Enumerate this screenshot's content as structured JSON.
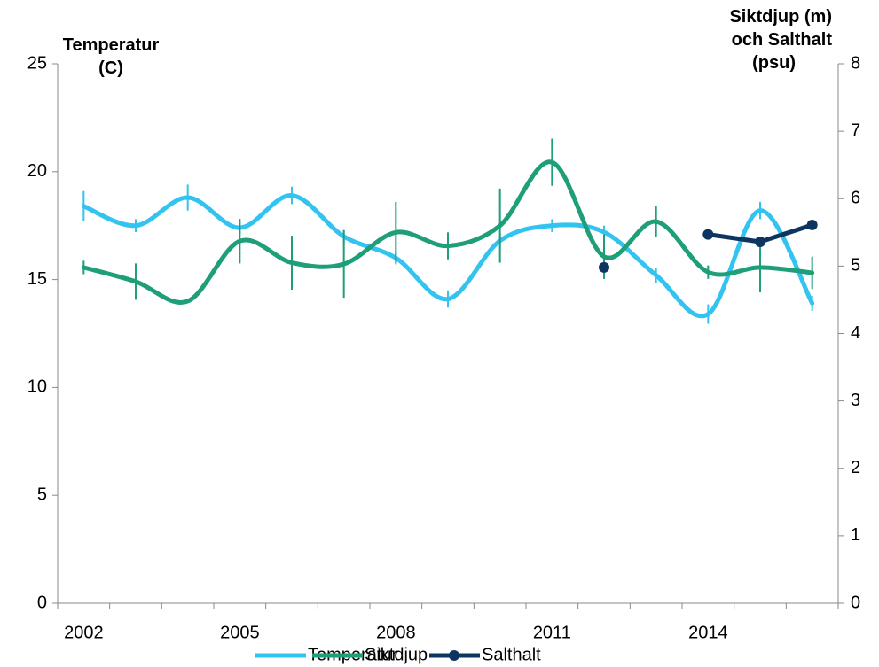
{
  "chart_data": {
    "type": "line",
    "y_label": [
      "Temperatur",
      "(C)"
    ],
    "y2_label": [
      "Siktdjup (m)",
      "och Salthalt",
      "(psu)"
    ],
    "categories": [
      "2002",
      null,
      null,
      "2005",
      null,
      null,
      "2008",
      null,
      null,
      "2011",
      null,
      null,
      "2014",
      null,
      null
    ],
    "ylim": [
      0,
      25
    ],
    "yticks": [
      0,
      5,
      10,
      15,
      20,
      25
    ],
    "y2lim": [
      0,
      8
    ],
    "y2ticks": [
      0,
      1,
      2,
      3,
      4,
      5,
      6,
      7,
      8
    ],
    "grid": false,
    "legend": "bottom",
    "series": [
      {
        "name": "Temperatur",
        "color": "#33c3f0",
        "smooth": true,
        "markers": false,
        "values": [
          18.4,
          17.5,
          18.8,
          17.4,
          18.9,
          17.0,
          16.0,
          14.1,
          16.8,
          17.5,
          17.2,
          15.2,
          13.4,
          18.2,
          13.9
        ],
        "errors": [
          0.7,
          0.3,
          0.6,
          0.3,
          0.4,
          0.3,
          0.3,
          0.4,
          0.3,
          0.3,
          0.3,
          0.35,
          0.45,
          0.4,
          0.35
        ]
      },
      {
        "name": "Siktdjup",
        "color": "#1f9e7a",
        "smooth": true,
        "markers": false,
        "axis": "y2",
        "values": [
          4.98,
          4.77,
          4.48,
          5.37,
          5.05,
          5.03,
          5.5,
          5.3,
          5.6,
          6.54,
          5.14,
          5.66,
          4.91,
          4.98,
          4.9
        ],
        "errors": [
          0.1,
          0.27,
          null,
          0.33,
          0.4,
          0.5,
          0.45,
          0.2,
          0.55,
          0.35,
          0.33,
          0.23,
          0.1,
          0.37,
          0.24
        ]
      },
      {
        "name": "Salthalt",
        "color": "#0d3560",
        "smooth": false,
        "markers": true,
        "axis": "y2",
        "values": [
          null,
          null,
          null,
          null,
          null,
          null,
          null,
          null,
          null,
          null,
          4.98,
          null,
          5.47,
          5.36,
          5.61
        ]
      }
    ]
  }
}
